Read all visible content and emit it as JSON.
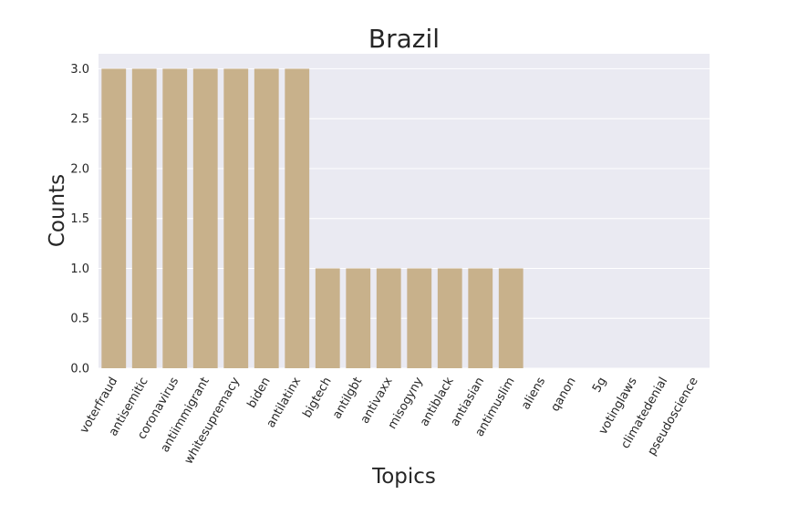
{
  "chart_data": {
    "type": "bar",
    "title": "Brazil",
    "xlabel": "Topics",
    "ylabel": "Counts",
    "categories": [
      "voterfraud",
      "antisemitic",
      "coronavirus",
      "antiimmigrant",
      "whitesupremacy",
      "biden",
      "antilatinx",
      "bigtech",
      "antilgbt",
      "antivaxx",
      "misogyny",
      "antiblack",
      "antiasian",
      "antimuslim",
      "aliens",
      "qanon",
      "5g",
      "votinglaws",
      "climatedenial",
      "pseudoscience"
    ],
    "values": [
      3,
      3,
      3,
      3,
      3,
      3,
      3,
      1,
      1,
      1,
      1,
      1,
      1,
      1,
      0,
      0,
      0,
      0,
      0,
      0
    ],
    "ylim": [
      0,
      3.15
    ],
    "yticks": [
      0.0,
      0.5,
      1.0,
      1.5,
      2.0,
      2.5,
      3.0
    ],
    "ytick_labels": [
      "0.0",
      "0.5",
      "1.0",
      "1.5",
      "2.0",
      "2.5",
      "3.0"
    ],
    "grid": true,
    "colors": {
      "bar": "#c8b18b",
      "background": "#eaeaf2",
      "grid": "#ffffff"
    }
  }
}
